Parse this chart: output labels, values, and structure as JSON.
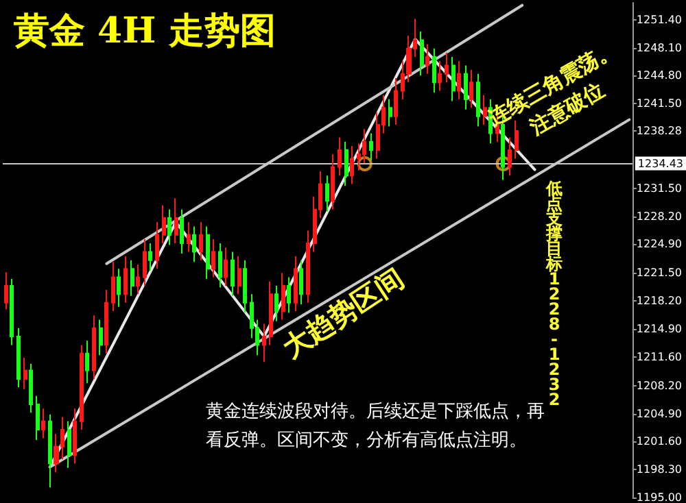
{
  "chart_data": {
    "type": "candlestick",
    "title": "黄金 4H 走势图",
    "annotations": [
      "连续三角震荡。\n注意破位",
      "低点支撑目标1228-1232",
      "大趋势区间",
      "黄金连续波段对待。后续还是下踩低点，再看反弹。区间不变，分析有高低点注明。"
    ],
    "categories": [
      null,
      null,
      null,
      null,
      null,
      null,
      null,
      null,
      null,
      null,
      null,
      null,
      null,
      null,
      null,
      null,
      null,
      null,
      null,
      null,
      null,
      null,
      null,
      null,
      null,
      null,
      null,
      null,
      null,
      null,
      null,
      null,
      null,
      null,
      null,
      null,
      null,
      null,
      null,
      null,
      null,
      null,
      null,
      null,
      null,
      null,
      null,
      null,
      null,
      null,
      null,
      null,
      null,
      null,
      null,
      null,
      null,
      null,
      null,
      null,
      null,
      null,
      null,
      null,
      null,
      null,
      null,
      null,
      null,
      null,
      null,
      null,
      null,
      null,
      null,
      null,
      null,
      null,
      null,
      null,
      null,
      null,
      null,
      null,
      null,
      null,
      null,
      null,
      null,
      null,
      null,
      null,
      null,
      null,
      null,
      null,
      null,
      null,
      null,
      null
    ],
    "ohlc": [
      [
        1218,
        1221.6,
        1217.2,
        1220
      ],
      [
        1220,
        1220.8,
        1213,
        1214
      ],
      [
        1214,
        1215,
        1208,
        1209
      ],
      [
        1209,
        1211.5,
        1207.8,
        1210
      ],
      [
        1210,
        1210.8,
        1205,
        1206
      ],
      [
        1206,
        1207,
        1201.8,
        1203
      ],
      [
        1203,
        1205.5,
        1202,
        1204
      ],
      [
        1204,
        1204.8,
        1196.2,
        1199
      ],
      [
        1199,
        1202.5,
        1198,
        1201
      ],
      [
        1201,
        1204.5,
        1199.5,
        1203
      ],
      [
        1203,
        1204,
        1198.5,
        1200
      ],
      [
        1200,
        1205.5,
        1199,
        1204
      ],
      [
        1204,
        1213,
        1203,
        1212
      ],
      [
        1212,
        1213.5,
        1208.5,
        1210
      ],
      [
        1210,
        1216.5,
        1209,
        1215
      ],
      [
        1215,
        1216,
        1211.8,
        1213
      ],
      [
        1213,
        1219.5,
        1212,
        1218
      ],
      [
        1218,
        1222.8,
        1217,
        1221
      ],
      [
        1221,
        1222,
        1217.5,
        1219
      ],
      [
        1219,
        1223.5,
        1218,
        1222
      ],
      [
        1222,
        1223,
        1218.8,
        1220
      ],
      [
        1220,
        1222.5,
        1219,
        1221
      ],
      [
        1221,
        1225.5,
        1220,
        1224
      ],
      [
        1224,
        1225,
        1221.8,
        1223
      ],
      [
        1223,
        1227.5,
        1222,
        1226
      ],
      [
        1226,
        1229.5,
        1225,
        1228
      ],
      [
        1228,
        1229,
        1224.8,
        1226
      ],
      [
        1226,
        1230.3,
        1225,
        1228
      ],
      [
        1228,
        1229,
        1223.8,
        1225
      ],
      [
        1225,
        1227.5,
        1224,
        1226
      ],
      [
        1226,
        1227,
        1222.8,
        1224
      ],
      [
        1224,
        1227.5,
        1223,
        1226
      ],
      [
        1226,
        1227,
        1220.8,
        1222
      ],
      [
        1222,
        1225.5,
        1221,
        1224
      ],
      [
        1224,
        1225,
        1219.8,
        1221
      ],
      [
        1221,
        1224.5,
        1220,
        1223
      ],
      [
        1223,
        1224,
        1218.8,
        1220
      ],
      [
        1220,
        1223.5,
        1219,
        1222
      ],
      [
        1222,
        1223,
        1216.8,
        1218
      ],
      [
        1218,
        1219,
        1213.8,
        1215
      ],
      [
        1215,
        1216,
        1211.8,
        1213
      ],
      [
        1213,
        1215.5,
        1211,
        1214
      ],
      [
        1214,
        1220.5,
        1213,
        1219
      ],
      [
        1219,
        1220,
        1215.8,
        1217
      ],
      [
        1217,
        1221.5,
        1216,
        1220
      ],
      [
        1220,
        1221,
        1216.8,
        1218
      ],
      [
        1218,
        1223.5,
        1217,
        1222
      ],
      [
        1222,
        1223,
        1217.8,
        1219
      ],
      [
        1219,
        1226.5,
        1218,
        1225
      ],
      [
        1225,
        1230.5,
        1224,
        1229
      ],
      [
        1229,
        1233.5,
        1228,
        1232
      ],
      [
        1232,
        1233,
        1228.8,
        1230
      ],
      [
        1230,
        1235.5,
        1229,
        1234
      ],
      [
        1234,
        1237.5,
        1233,
        1236
      ],
      [
        1236,
        1237,
        1231.8,
        1233
      ],
      [
        1233,
        1236.5,
        1232,
        1235
      ],
      [
        1235,
        1236.8,
        1233.6,
        1235.5
      ],
      [
        1235.5,
        1238.5,
        1234.5,
        1237
      ],
      [
        1237,
        1238,
        1234.8,
        1236
      ],
      [
        1236,
        1240.5,
        1235,
        1239
      ],
      [
        1239,
        1242.5,
        1238,
        1241
      ],
      [
        1241,
        1242,
        1238.8,
        1240
      ],
      [
        1240,
        1244.5,
        1239,
        1243
      ],
      [
        1243,
        1246.5,
        1242,
        1245
      ],
      [
        1245,
        1249.5,
        1244,
        1248
      ],
      [
        1248,
        1251.5,
        1247,
        1249
      ],
      [
        1249,
        1250,
        1244.8,
        1246
      ],
      [
        1246,
        1248.5,
        1245,
        1247
      ],
      [
        1247,
        1248,
        1242.8,
        1244
      ],
      [
        1244,
        1246.5,
        1243,
        1245
      ],
      [
        1245,
        1247.5,
        1244,
        1246
      ],
      [
        1246,
        1247,
        1241.8,
        1243
      ],
      [
        1243,
        1246.5,
        1242,
        1245
      ],
      [
        1245,
        1246,
        1240.8,
        1242
      ],
      [
        1242,
        1245.5,
        1241,
        1244
      ],
      [
        1244,
        1245,
        1238.8,
        1240
      ],
      [
        1240,
        1242.5,
        1239,
        1241
      ],
      [
        1241,
        1242,
        1236.8,
        1238
      ],
      [
        1238,
        1240.5,
        1237,
        1239
      ],
      [
        1239,
        1240,
        1232.5,
        1234
      ],
      [
        1234,
        1237.5,
        1233,
        1236
      ],
      [
        1236,
        1239.5,
        1235,
        1238.28
      ],
      null,
      null,
      null,
      null,
      null,
      null,
      null,
      null,
      null,
      null,
      null,
      null,
      null,
      null,
      null,
      null,
      null,
      null
    ],
    "colors": [
      "#ff1a1a",
      "#1aff1a",
      "#1aff1a",
      "#ff1a1a",
      "#1aff1a",
      "#1aff1a",
      "#ff1a1a",
      "#1aff1a",
      "#ff1a1a",
      "#ff1a1a",
      "#1aff1a",
      "#ff1a1a",
      "#ff1a1a",
      "#1aff1a",
      "#ff1a1a",
      "#1aff1a",
      "#ff1a1a",
      "#ff1a1a",
      "#1aff1a",
      "#ff1a1a",
      "#1aff1a",
      "#ff1a1a",
      "#ff1a1a",
      "#1aff1a",
      "#ff1a1a",
      "#ff1a1a",
      "#1aff1a",
      "#ff1a1a",
      "#1aff1a",
      "#ff1a1a",
      "#1aff1a",
      "#ff1a1a",
      "#1aff1a",
      "#ff1a1a",
      "#1aff1a",
      "#ff1a1a",
      "#1aff1a",
      "#ff1a1a",
      "#1aff1a",
      "#1aff1a",
      "#1aff1a",
      "#ff1a1a",
      "#ff1a1a",
      "#1aff1a",
      "#ff1a1a",
      "#1aff1a",
      "#ff1a1a",
      "#1aff1a",
      "#ff1a1a",
      "#ff1a1a",
      "#ff1a1a",
      "#1aff1a",
      "#ff1a1a",
      "#ff1a1a",
      "#1aff1a",
      "#ff1a1a",
      "#ff1a1a",
      "#ff1a1a",
      "#1aff1a",
      "#ff1a1a",
      "#ff1a1a",
      "#1aff1a",
      "#ff1a1a",
      "#ff1a1a",
      "#ff1a1a",
      "#ff1a1a",
      "#1aff1a",
      "#ff1a1a",
      "#1aff1a",
      "#ff1a1a",
      "#ff1a1a",
      "#1aff1a",
      "#ff1a1a",
      "#1aff1a",
      "#ff1a1a",
      "#1aff1a",
      "#ff1a1a",
      "#1aff1a",
      "#ff1a1a",
      "#1aff1a",
      "#ff1a1a",
      "#ff1a1a",
      null,
      null,
      null,
      null,
      null,
      null,
      null,
      null,
      null,
      null,
      null,
      null,
      null,
      null,
      null,
      null,
      null,
      null
    ],
    "ylim": [
      1195,
      1253.4
    ],
    "yticks": [
      {
        "value": 1195,
        "label": "1195.00"
      },
      {
        "value": 1198.3,
        "label": "1198.30"
      },
      {
        "value": 1201.6,
        "label": "1201.60"
      },
      {
        "value": 1204.9,
        "label": "1204.90"
      },
      {
        "value": 1208.2,
        "label": "1208.20"
      },
      {
        "value": 1211.6,
        "label": "1211.60"
      },
      {
        "value": 1214.9,
        "label": "1214.90"
      },
      {
        "value": 1218.2,
        "label": "1218.20"
      },
      {
        "value": 1221.5,
        "label": "1221.50"
      },
      {
        "value": 1224.9,
        "label": "1224.90"
      },
      {
        "value": 1228.2,
        "label": "1228.20"
      },
      {
        "value": 1231.5,
        "label": "1231.50"
      },
      {
        "value": 1238.28,
        "label": "1238.28"
      },
      {
        "value": 1241.5,
        "label": "1241.50"
      },
      {
        "value": 1244.8,
        "label": "1244.80"
      },
      {
        "value": 1248.1,
        "label": "1248.10"
      },
      {
        "value": 1251.4,
        "label": "1251.40"
      }
    ],
    "tick_labels": "y",
    "ref_lines": [
      {
        "axis": "y",
        "value": 1234.43,
        "label": "1234.43",
        "color": "#c8c8c8"
      }
    ],
    "series": [
      {
        "type": "line",
        "color": "#e8e8e8",
        "marker": "none",
        "values": [
          null,
          null,
          null,
          null,
          null,
          null,
          null,
          1198.6,
          null,
          null,
          null,
          null,
          null,
          null,
          null,
          null,
          null,
          null,
          null,
          null,
          null,
          null,
          null,
          null,
          null,
          null,
          null,
          1227.5,
          null,
          null,
          null,
          null,
          null,
          null,
          null,
          null,
          null,
          null,
          null,
          null,
          null,
          1214,
          null,
          null,
          null,
          null,
          null,
          null,
          null,
          null,
          null,
          null,
          null,
          null,
          null,
          null,
          null,
          null,
          null,
          null,
          null,
          null,
          null,
          null,
          null,
          1249.1,
          null,
          null,
          null,
          null,
          null,
          null,
          null,
          null,
          null,
          null,
          null,
          null,
          null,
          null,
          null,
          null,
          null,
          null,
          1233.7,
          null,
          null,
          null,
          null,
          null,
          null,
          null,
          null,
          null,
          null,
          null,
          null,
          null,
          null,
          null
        ]
      },
      {
        "type": "line",
        "color": "#c8c8c8",
        "marker": "none",
        "values": [
          null,
          null,
          null,
          null,
          null,
          null,
          null,
          null,
          null,
          null,
          null,
          null,
          null,
          null,
          null,
          null,
          1222.6,
          null,
          null,
          null,
          null,
          null,
          null,
          null,
          null,
          null,
          null,
          null,
          null,
          null,
          null,
          null,
          null,
          null,
          null,
          null,
          null,
          null,
          null,
          null,
          null,
          null,
          null,
          null,
          null,
          null,
          null,
          null,
          null,
          null,
          null,
          null,
          null,
          null,
          null,
          null,
          null,
          null,
          null,
          null,
          null,
          null,
          null,
          null,
          null,
          null,
          null,
          null,
          null,
          null,
          null,
          null,
          null,
          null,
          null,
          null,
          null,
          null,
          null,
          null,
          null,
          null,
          1253.1,
          null,
          null,
          null,
          null,
          null,
          null,
          null,
          null,
          null,
          null,
          null,
          null,
          null,
          null,
          null,
          null,
          null
        ]
      },
      {
        "type": "line",
        "color": "#c8c8c8",
        "marker": "none",
        "values": [
          null,
          null,
          null,
          null,
          null,
          null,
          null,
          1198.6,
          null,
          null,
          null,
          null,
          null,
          null,
          null,
          null,
          null,
          null,
          null,
          null,
          null,
          null,
          null,
          null,
          null,
          null,
          null,
          null,
          null,
          null,
          null,
          null,
          null,
          null,
          null,
          null,
          null,
          null,
          null,
          null,
          null,
          null,
          null,
          null,
          null,
          null,
          null,
          null,
          null,
          null,
          null,
          null,
          null,
          null,
          null,
          null,
          null,
          null,
          null,
          null,
          null,
          null,
          null,
          null,
          null,
          null,
          null,
          null,
          null,
          null,
          null,
          null,
          null,
          null,
          null,
          null,
          null,
          null,
          null,
          null,
          null,
          null,
          null,
          null,
          null,
          null,
          null,
          null,
          null,
          null,
          null,
          null,
          null,
          null,
          null,
          null,
          null,
          null,
          null,
          1239.6
        ]
      },
      {
        "type": "scatter",
        "color": "#f0a020",
        "marker": "circle",
        "values": [
          null,
          null,
          null,
          null,
          null,
          null,
          null,
          null,
          null,
          null,
          null,
          null,
          null,
          null,
          null,
          null,
          null,
          null,
          null,
          null,
          null,
          null,
          null,
          null,
          null,
          null,
          null,
          null,
          null,
          null,
          null,
          null,
          null,
          null,
          null,
          null,
          null,
          null,
          null,
          null,
          null,
          null,
          null,
          null,
          null,
          null,
          null,
          null,
          null,
          null,
          null,
          null,
          null,
          null,
          null,
          null,
          null,
          1234.4,
          null,
          null,
          null,
          null,
          null,
          null,
          null,
          null,
          null,
          null,
          null,
          null,
          null,
          null,
          null,
          null,
          null,
          null,
          null,
          null,
          null,
          1234.4,
          null,
          null,
          null,
          null,
          null,
          null,
          null,
          null,
          null,
          null,
          null,
          null,
          null,
          null,
          null,
          null,
          null,
          null,
          null,
          null
        ]
      }
    ]
  }
}
